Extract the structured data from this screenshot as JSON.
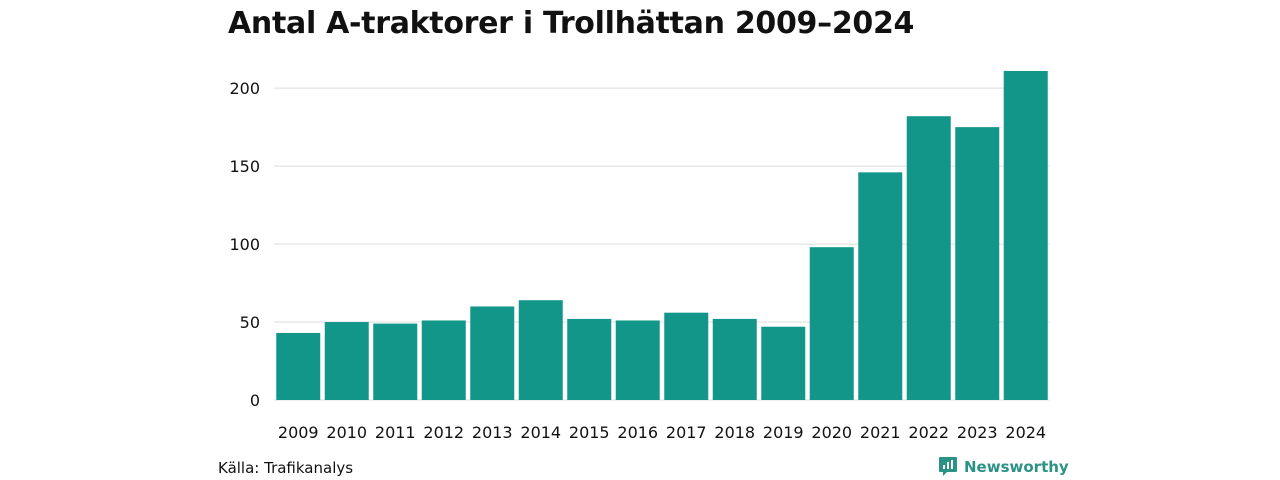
{
  "colors": {
    "bar": "#13968a",
    "grid": "#dcdcdc",
    "text": "#111111",
    "brand": "#2b9385"
  },
  "chart_data": {
    "type": "bar",
    "title": "Antal A-traktorer i Trollhättan 2009–2024",
    "xlabel": "",
    "ylabel": "",
    "categories": [
      "2009",
      "2010",
      "2011",
      "2012",
      "2013",
      "2014",
      "2015",
      "2016",
      "2017",
      "2018",
      "2019",
      "2020",
      "2021",
      "2022",
      "2023",
      "2024"
    ],
    "values": [
      43,
      50,
      49,
      51,
      60,
      64,
      52,
      51,
      56,
      52,
      47,
      98,
      146,
      182,
      175,
      211
    ],
    "ylim": [
      0,
      211
    ],
    "yticks": [
      0,
      50,
      100,
      150,
      200
    ],
    "grid": "horizontal",
    "legend": "none"
  },
  "footer": {
    "source": "Källa: Trafikanalys",
    "brand": "Newsworthy",
    "brand_icon": "newsworthy-chart-bubble-icon"
  }
}
